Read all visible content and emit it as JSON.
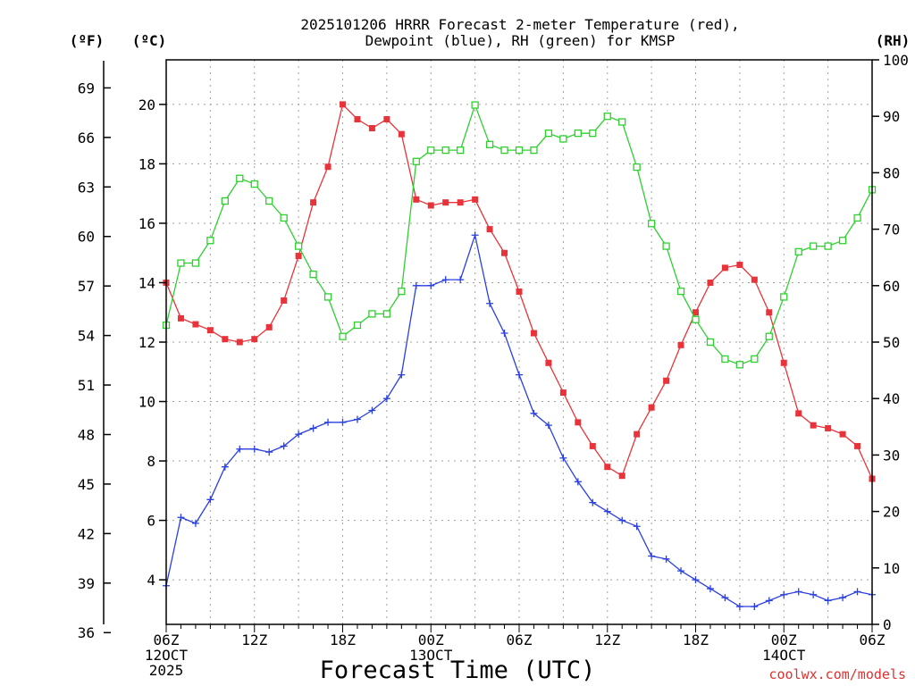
{
  "chart_data": {
    "type": "line",
    "title_line1": "2025101206 HRRR Forecast 2-meter Temperature (red),",
    "title_line2": "Dewpoint (blue), RH (green) for KMSP",
    "xlabel": "Forecast Time (UTC)",
    "credit": "coolwx.com/models",
    "units": {
      "fahrenheit": "(ºF)",
      "celsius": "(ºC)",
      "rh": "(RH)"
    },
    "x_range_hours": [
      0,
      48
    ],
    "left_axis_c": {
      "min": 2.5,
      "max": 21.5,
      "ticks": [
        4,
        6,
        8,
        10,
        12,
        14,
        16,
        18,
        20
      ]
    },
    "far_left_axis_f": {
      "ticks": [
        36,
        39,
        42,
        45,
        48,
        51,
        54,
        57,
        60,
        63,
        66,
        69
      ]
    },
    "right_axis_rh": {
      "min": 0,
      "max": 100,
      "ticks": [
        0,
        10,
        20,
        30,
        40,
        50,
        60,
        70,
        80,
        90,
        100
      ]
    },
    "x_ticks": [
      {
        "hour": 0,
        "label": "06Z",
        "sub1": "12OCT",
        "sub2": "2025"
      },
      {
        "hour": 6,
        "label": "12Z"
      },
      {
        "hour": 12,
        "label": "18Z"
      },
      {
        "hour": 18,
        "label": "00Z",
        "sub1": "13OCT"
      },
      {
        "hour": 24,
        "label": "06Z"
      },
      {
        "hour": 30,
        "label": "12Z"
      },
      {
        "hour": 36,
        "label": "18Z"
      },
      {
        "hour": 42,
        "label": "00Z",
        "sub1": "14OCT"
      },
      {
        "hour": 48,
        "label": "06Z"
      }
    ],
    "series": [
      {
        "name": "Temperature",
        "unit": "C",
        "axis": "left",
        "color": "#e8333a",
        "marker": "filled-square",
        "values": [
          14.0,
          12.8,
          12.6,
          12.4,
          12.1,
          12.0,
          12.1,
          12.5,
          13.4,
          14.9,
          16.7,
          17.9,
          20.0,
          19.5,
          19.2,
          19.5,
          19.0,
          16.8,
          16.6,
          16.7,
          16.7,
          16.8,
          15.8,
          15.0,
          13.7,
          12.3,
          11.3,
          10.3,
          9.3,
          8.5,
          7.8,
          7.5,
          8.9,
          9.8,
          10.7,
          11.9,
          13.0,
          14.0,
          14.5,
          14.6,
          14.1,
          13.0,
          11.3,
          9.6,
          9.2,
          9.1,
          8.9,
          8.5,
          7.4
        ]
      },
      {
        "name": "Dewpoint",
        "unit": "C",
        "axis": "left",
        "color": "#2a3fe0",
        "marker": "plus",
        "values": [
          3.8,
          6.1,
          5.9,
          6.7,
          7.8,
          8.4,
          8.4,
          8.3,
          8.5,
          8.9,
          9.1,
          9.3,
          9.3,
          9.4,
          9.7,
          10.1,
          10.9,
          13.9,
          13.9,
          14.1,
          14.1,
          15.6,
          13.3,
          12.3,
          10.9,
          9.6,
          9.2,
          8.1,
          7.3,
          6.6,
          6.3,
          6.0,
          5.8,
          4.8,
          4.7,
          4.3,
          4.0,
          3.7,
          3.4,
          3.1,
          3.1,
          3.3,
          3.5,
          3.6,
          3.5,
          3.3,
          3.4,
          3.6,
          3.5
        ]
      },
      {
        "name": "RH",
        "unit": "%",
        "axis": "right",
        "color": "#2ed02e",
        "marker": "open-square",
        "values": [
          53,
          64,
          64,
          68,
          75,
          79,
          78,
          75,
          72,
          67,
          62,
          58,
          51,
          53,
          55,
          55,
          59,
          82,
          84,
          84,
          84,
          92,
          85,
          84,
          84,
          84,
          87,
          86,
          87,
          87,
          90,
          89,
          81,
          71,
          67,
          59,
          54,
          50,
          47,
          46,
          47,
          51,
          58,
          66,
          67,
          67,
          68,
          72,
          77
        ]
      }
    ]
  }
}
